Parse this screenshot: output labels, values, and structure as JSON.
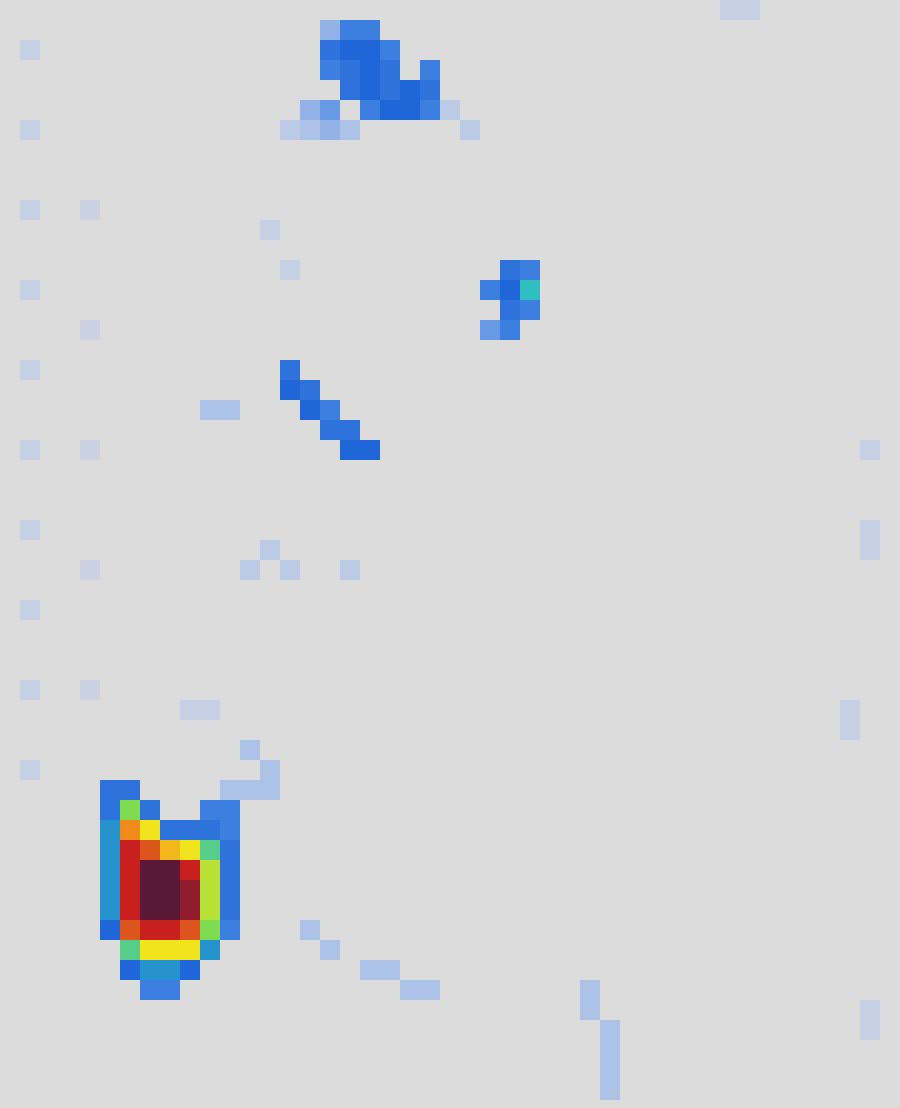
{
  "chart_data": {
    "type": "heatmap",
    "tick_labels": false,
    "xlim": [
      0,
      45
    ],
    "ylim": [
      0,
      55.4
    ],
    "zlim": [
      0,
      1
    ],
    "colors": [
      "#dcdcdc",
      "#c5d0e4",
      "#93b3e8",
      "#3d7fe0",
      "#1f66d8",
      "#2fbfc0",
      "#7fdc50",
      "#f2e41c",
      "#f08a1a",
      "#c8201e",
      "#5a1838"
    ],
    "cells": [
      [
        1,
        2,
        0.1
      ],
      [
        1,
        6,
        0.1
      ],
      [
        1,
        10,
        0.1
      ],
      [
        1,
        14,
        0.1
      ],
      [
        1,
        18,
        0.1
      ],
      [
        1,
        22,
        0.1
      ],
      [
        1,
        26,
        0.1
      ],
      [
        1,
        30,
        0.1
      ],
      [
        1,
        34,
        0.1
      ],
      [
        1,
        38,
        0.1
      ],
      [
        4,
        10,
        0.08
      ],
      [
        4,
        16,
        0.08
      ],
      [
        4,
        22,
        0.08
      ],
      [
        4,
        28,
        0.08
      ],
      [
        4,
        34,
        0.08
      ],
      [
        16,
        1,
        0.2
      ],
      [
        17,
        1,
        0.3
      ],
      [
        18,
        1,
        0.3
      ],
      [
        16,
        2,
        0.35
      ],
      [
        17,
        2,
        0.4
      ],
      [
        18,
        2,
        0.4
      ],
      [
        19,
        2,
        0.3
      ],
      [
        16,
        3,
        0.3
      ],
      [
        17,
        3,
        0.35
      ],
      [
        18,
        3,
        0.4
      ],
      [
        19,
        3,
        0.35
      ],
      [
        21,
        3,
        0.3
      ],
      [
        17,
        4,
        0.35
      ],
      [
        18,
        4,
        0.4
      ],
      [
        19,
        4,
        0.35
      ],
      [
        20,
        4,
        0.4
      ],
      [
        21,
        4,
        0.35
      ],
      [
        15,
        5,
        0.2
      ],
      [
        16,
        5,
        0.25
      ],
      [
        18,
        5,
        0.3
      ],
      [
        19,
        5,
        0.4
      ],
      [
        20,
        5,
        0.4
      ],
      [
        21,
        5,
        0.3
      ],
      [
        14,
        6,
        0.12
      ],
      [
        15,
        6,
        0.15
      ],
      [
        16,
        6,
        0.2
      ],
      [
        17,
        6,
        0.15
      ],
      [
        22,
        5,
        0.12
      ],
      [
        23,
        6,
        0.12
      ],
      [
        36,
        0,
        0.1
      ],
      [
        37,
        0,
        0.1
      ],
      [
        13,
        11,
        0.1
      ],
      [
        14,
        13,
        0.1
      ],
      [
        25,
        13,
        0.35
      ],
      [
        26,
        13,
        0.3
      ],
      [
        24,
        14,
        0.3
      ],
      [
        25,
        14,
        0.4
      ],
      [
        26,
        14,
        0.5
      ],
      [
        25,
        15,
        0.35
      ],
      [
        26,
        15,
        0.3
      ],
      [
        24,
        16,
        0.25
      ],
      [
        25,
        16,
        0.3
      ],
      [
        14,
        18,
        0.35
      ],
      [
        14,
        19,
        0.4
      ],
      [
        15,
        19,
        0.35
      ],
      [
        15,
        20,
        0.4
      ],
      [
        16,
        20,
        0.3
      ],
      [
        16,
        21,
        0.35
      ],
      [
        17,
        21,
        0.35
      ],
      [
        17,
        22,
        0.4
      ],
      [
        18,
        22,
        0.4
      ],
      [
        10,
        20,
        0.15
      ],
      [
        11,
        20,
        0.15
      ],
      [
        12,
        28,
        0.12
      ],
      [
        13,
        27,
        0.12
      ],
      [
        14,
        28,
        0.12
      ],
      [
        17,
        28,
        0.12
      ],
      [
        9,
        35,
        0.1
      ],
      [
        10,
        35,
        0.1
      ],
      [
        12,
        37,
        0.15
      ],
      [
        13,
        38,
        0.15
      ],
      [
        13,
        39,
        0.15
      ],
      [
        5,
        39,
        0.35
      ],
      [
        6,
        39,
        0.35
      ],
      [
        11,
        39,
        0.15
      ],
      [
        12,
        39,
        0.15
      ],
      [
        5,
        40,
        0.35
      ],
      [
        6,
        40,
        0.6
      ],
      [
        7,
        40,
        0.35
      ],
      [
        10,
        40,
        0.3
      ],
      [
        11,
        40,
        0.3
      ],
      [
        5,
        41,
        0.45
      ],
      [
        6,
        41,
        0.8
      ],
      [
        7,
        41,
        0.7
      ],
      [
        8,
        41,
        0.35
      ],
      [
        9,
        41,
        0.35
      ],
      [
        10,
        41,
        0.35
      ],
      [
        11,
        41,
        0.3
      ],
      [
        5,
        42,
        0.45
      ],
      [
        6,
        42,
        0.9
      ],
      [
        7,
        42,
        0.85
      ],
      [
        8,
        42,
        0.75
      ],
      [
        9,
        42,
        0.7
      ],
      [
        10,
        42,
        0.55
      ],
      [
        11,
        42,
        0.35
      ],
      [
        5,
        43,
        0.45
      ],
      [
        6,
        43,
        0.9
      ],
      [
        7,
        43,
        1.0
      ],
      [
        8,
        43,
        1.0
      ],
      [
        9,
        43,
        0.9
      ],
      [
        10,
        43,
        0.65
      ],
      [
        11,
        43,
        0.35
      ],
      [
        5,
        44,
        0.45
      ],
      [
        6,
        44,
        0.9
      ],
      [
        7,
        44,
        1.0
      ],
      [
        8,
        44,
        1.0
      ],
      [
        9,
        44,
        0.95
      ],
      [
        10,
        44,
        0.65
      ],
      [
        11,
        44,
        0.35
      ],
      [
        5,
        45,
        0.45
      ],
      [
        6,
        45,
        0.9
      ],
      [
        7,
        45,
        1.0
      ],
      [
        8,
        45,
        1.0
      ],
      [
        9,
        45,
        0.95
      ],
      [
        10,
        45,
        0.65
      ],
      [
        11,
        45,
        0.35
      ],
      [
        5,
        46,
        0.4
      ],
      [
        6,
        46,
        0.85
      ],
      [
        7,
        46,
        0.9
      ],
      [
        8,
        46,
        0.9
      ],
      [
        9,
        46,
        0.85
      ],
      [
        10,
        46,
        0.6
      ],
      [
        11,
        46,
        0.3
      ],
      [
        6,
        47,
        0.55
      ],
      [
        7,
        47,
        0.7
      ],
      [
        8,
        47,
        0.7
      ],
      [
        9,
        47,
        0.7
      ],
      [
        10,
        47,
        0.45
      ],
      [
        6,
        48,
        0.4
      ],
      [
        7,
        48,
        0.45
      ],
      [
        8,
        48,
        0.45
      ],
      [
        9,
        48,
        0.4
      ],
      [
        7,
        49,
        0.3
      ],
      [
        8,
        49,
        0.3
      ],
      [
        15,
        46,
        0.15
      ],
      [
        16,
        47,
        0.15
      ],
      [
        18,
        48,
        0.15
      ],
      [
        19,
        48,
        0.15
      ],
      [
        20,
        49,
        0.15
      ],
      [
        21,
        49,
        0.15
      ],
      [
        29,
        49,
        0.15
      ],
      [
        29,
        50,
        0.15
      ],
      [
        30,
        51,
        0.15
      ],
      [
        30,
        52,
        0.15
      ],
      [
        30,
        53,
        0.15
      ],
      [
        30,
        54,
        0.15
      ],
      [
        43,
        22,
        0.1
      ],
      [
        43,
        26,
        0.1
      ],
      [
        43,
        27,
        0.1
      ],
      [
        42,
        35,
        0.1
      ],
      [
        42,
        36,
        0.1
      ],
      [
        43,
        50,
        0.1
      ],
      [
        43,
        51,
        0.1
      ]
    ]
  }
}
